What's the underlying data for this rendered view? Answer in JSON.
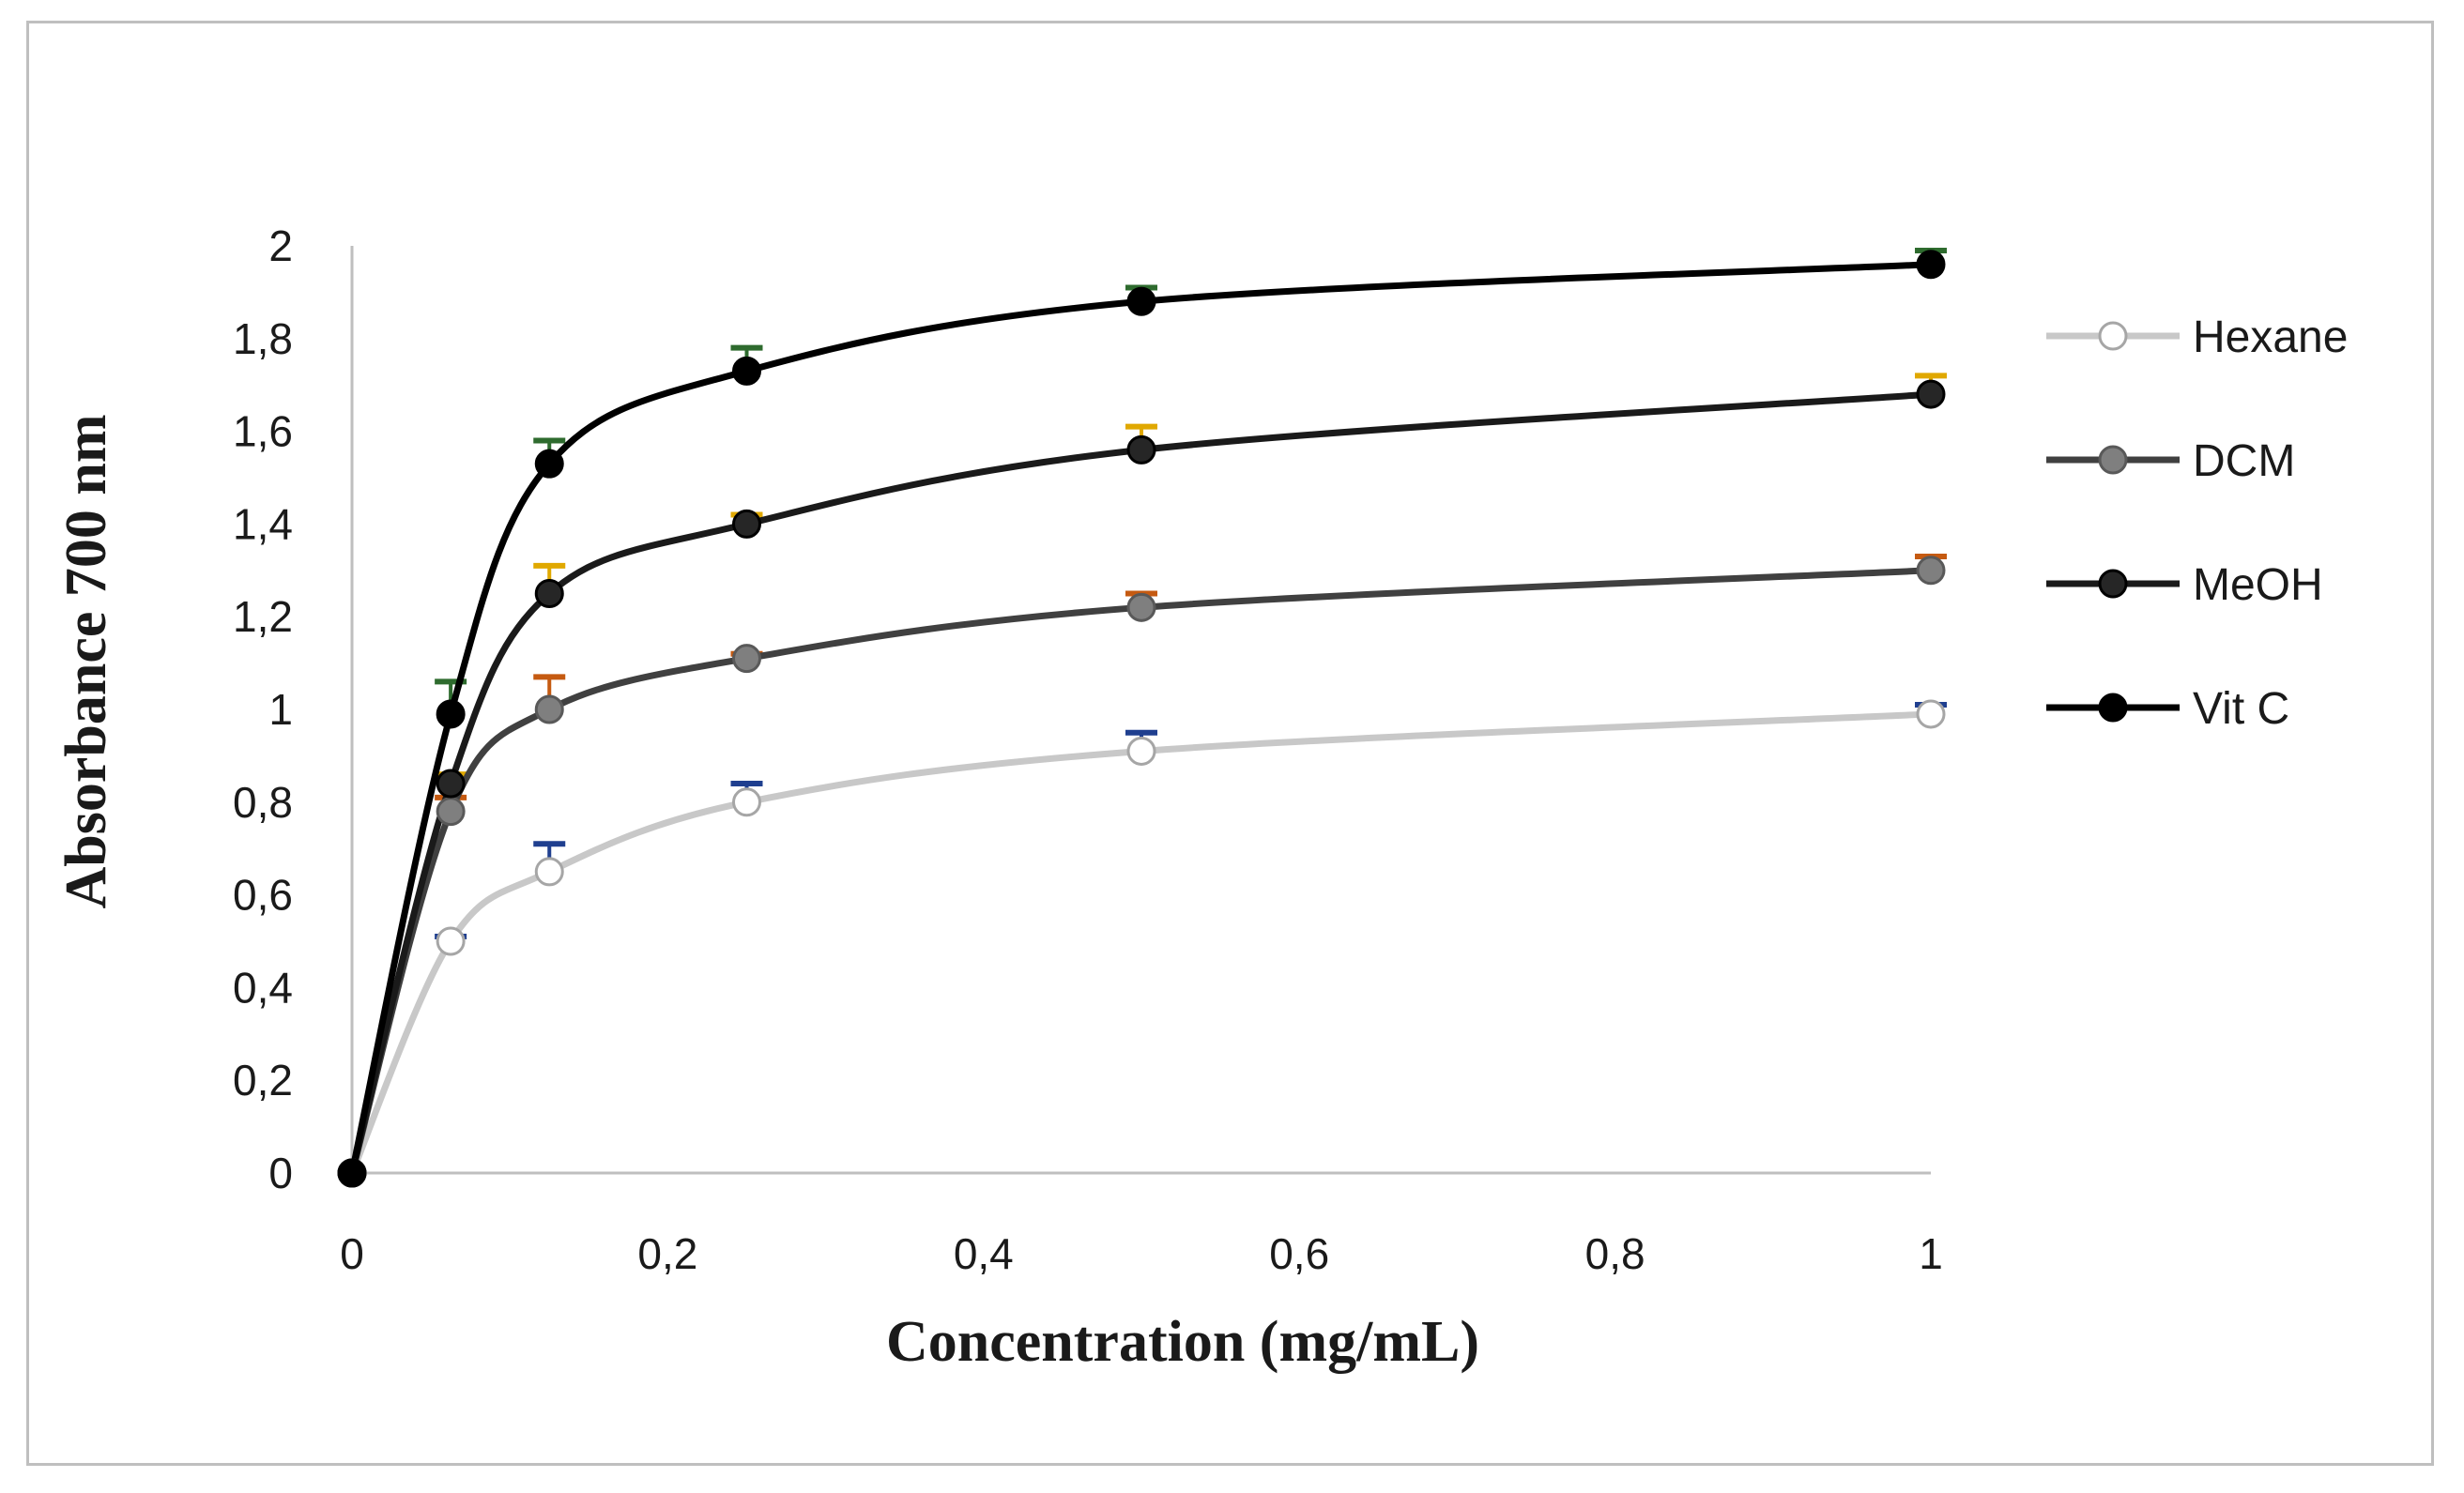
{
  "chart_data": {
    "type": "line",
    "title": "",
    "xlabel": "Concentration (mg/mL)",
    "ylabel": "Absorbance 700 nm",
    "xlim": [
      0,
      1
    ],
    "ylim": [
      0,
      2
    ],
    "x_ticks": [
      "0",
      "0,2",
      "0,4",
      "0,6",
      "0,8",
      "1"
    ],
    "x_tick_values": [
      0,
      0.2,
      0.4,
      0.6,
      0.8,
      1
    ],
    "y_ticks": [
      "0",
      "0,2",
      "0,4",
      "0,6",
      "0,8",
      "1",
      "1,2",
      "1,4",
      "1,6",
      "1,8",
      "2"
    ],
    "y_tick_values": [
      0,
      0.2,
      0.4,
      0.6,
      0.8,
      1.0,
      1.2,
      1.4,
      1.6,
      1.8,
      2.0
    ],
    "grid": false,
    "legend_position": "right",
    "x": [
      0,
      0.0625,
      0.125,
      0.25,
      0.5,
      1
    ],
    "series": [
      {
        "name": "Hexane",
        "values": [
          0,
          0.5,
          0.65,
          0.8,
          0.91,
          0.99
        ],
        "errors": [
          0,
          0.01,
          0.06,
          0.04,
          0.04,
          0.02
        ],
        "line_color": "#c8c8c8",
        "marker_fill": "#ffffff",
        "marker_stroke": "#a6a6a6",
        "error_color": "#1f3f8f"
      },
      {
        "name": "DCM",
        "values": [
          0,
          0.78,
          1.0,
          1.11,
          1.22,
          1.3
        ],
        "errors": [
          0,
          0.03,
          0.07,
          0.01,
          0.03,
          0.03
        ],
        "line_color": "#404040",
        "marker_fill": "#7f7f7f",
        "marker_stroke": "#595959",
        "error_color": "#c55a11"
      },
      {
        "name": "MeOH",
        "values": [
          0,
          0.84,
          1.25,
          1.4,
          1.56,
          1.68
        ],
        "errors": [
          0,
          0.02,
          0.06,
          0.02,
          0.05,
          0.04
        ],
        "line_color": "#1a1a1a",
        "marker_fill": "#262626",
        "marker_stroke": "#000000",
        "error_color": "#e0a800"
      },
      {
        "name": "Vit C",
        "values": [
          0,
          0.99,
          1.53,
          1.73,
          1.88,
          1.96
        ],
        "errors": [
          0,
          0.07,
          0.05,
          0.05,
          0.03,
          0.03
        ],
        "line_color": "#000000",
        "marker_fill": "#000000",
        "marker_stroke": "#000000",
        "error_color": "#2e6b2e"
      }
    ]
  }
}
